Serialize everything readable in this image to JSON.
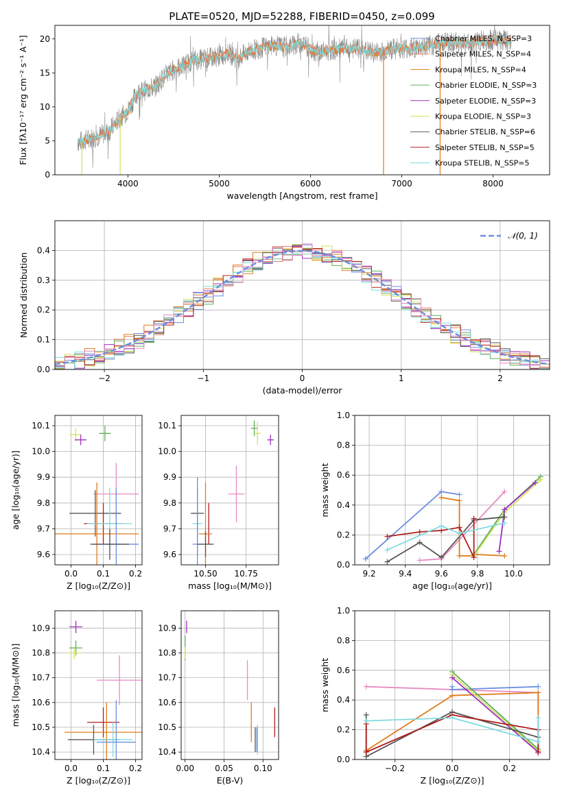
{
  "figure": {
    "title": "PLATE=0520, MJD=52288, FIBERID=0450, z=0.099"
  },
  "colors": {
    "Chabrier MILES": "#6a8ee0",
    "Salpeter MILES": "#e07a5f",
    "Kroupa MILES": "#e07b1c",
    "Chabrier ELODIE": "#5cae5c",
    "Salpeter ELODIE": "#9b30c0",
    "Kroupa ELODIE": "#d4e05a",
    "Chabrier STELIB": "#555555",
    "Salpeter STELIB": "#b01c1c",
    "Kroupa STELIB": "#7fdbe0",
    "pink": "#e88ac0",
    "gaussian": "#6a8ee0",
    "spectrum": "#888888"
  },
  "chart_data": [
    {
      "id": "spectrum",
      "type": "line",
      "xlabel": "wavelength [Angstrom, rest frame]",
      "ylabel": "Flux [fλ10⁻¹⁷ erg cm⁻² s⁻¹ A⁻¹]",
      "xlim": [
        3200,
        8620
      ],
      "ylim": [
        0,
        22
      ],
      "xticks": [
        4000,
        5000,
        6000,
        7000,
        8000
      ],
      "yticks": [
        0,
        5,
        10,
        15,
        20
      ],
      "grid": false,
      "legend_position": "upper-right",
      "legend": [
        {
          "label": "Chabrier MILES, N_SSP=3",
          "color": "Chabrier MILES"
        },
        {
          "label": "Salpeter MILES, N_SSP=4",
          "color": "Salpeter MILES"
        },
        {
          "label": "Kroupa MILES, N_SSP=4",
          "color": "Kroupa MILES"
        },
        {
          "label": "Chabrier ELODIE, N_SSP=3",
          "color": "Chabrier ELODIE"
        },
        {
          "label": "Salpeter ELODIE, N_SSP=3",
          "color": "Salpeter ELODIE"
        },
        {
          "label": "Kroupa ELODIE, N_SSP=3",
          "color": "Kroupa ELODIE"
        },
        {
          "label": "Chabrier STELIB, N_SSP=6",
          "color": "Chabrier STELIB"
        },
        {
          "label": "Salpeter STELIB, N_SSP=5",
          "color": "Salpeter STELIB"
        },
        {
          "label": "Kroupa STELIB, N_SSP=5",
          "color": "Kroupa STELIB"
        }
      ],
      "continuum": [
        [
          3450,
          4.8
        ],
        [
          3550,
          5.2
        ],
        [
          3700,
          5.8
        ],
        [
          3800,
          6.5
        ],
        [
          3900,
          8.2
        ],
        [
          4000,
          9.5
        ],
        [
          4100,
          12.0
        ],
        [
          4200,
          12.5
        ],
        [
          4300,
          13.0
        ],
        [
          4400,
          14.5
        ],
        [
          4500,
          15.5
        ],
        [
          4600,
          16.0
        ],
        [
          4700,
          16.8
        ],
        [
          4800,
          17.0
        ],
        [
          4900,
          17.2
        ],
        [
          5000,
          17.5
        ],
        [
          5100,
          18.0
        ],
        [
          5200,
          17.0
        ],
        [
          5300,
          18.0
        ],
        [
          5400,
          18.5
        ],
        [
          5500,
          18.8
        ],
        [
          5600,
          19.0
        ],
        [
          5700,
          18.8
        ],
        [
          5800,
          19.0
        ],
        [
          5900,
          19.5
        ],
        [
          6000,
          18.5
        ],
        [
          6100,
          18.0
        ],
        [
          6200,
          18.3
        ],
        [
          6300,
          18.5
        ],
        [
          6400,
          18.5
        ],
        [
          6500,
          18.6
        ],
        [
          6600,
          18.2
        ],
        [
          6700,
          18.0
        ],
        [
          6800,
          18.2
        ],
        [
          6900,
          18.5
        ],
        [
          7000,
          18.7
        ],
        [
          7100,
          18.6
        ],
        [
          7200,
          18.8
        ],
        [
          7300,
          19.0
        ],
        [
          7400,
          19.3
        ],
        [
          7500,
          19.6
        ],
        [
          7600,
          19.5
        ],
        [
          7700,
          19.3
        ],
        [
          7800,
          19.5
        ],
        [
          7900,
          19.8
        ],
        [
          8000,
          19.8
        ],
        [
          8100,
          19.8
        ],
        [
          8200,
          19.6
        ]
      ],
      "spikes": [
        [
          3495,
          0
        ],
        [
          3915,
          0
        ],
        [
          6800,
          0
        ],
        [
          7420,
          0
        ]
      ]
    },
    {
      "id": "residuals",
      "type": "histogram",
      "xlabel": "(data-model)/error",
      "ylabel": "Normed distribution",
      "xlim": [
        -2.5,
        2.5
      ],
      "ylim": [
        0,
        0.5
      ],
      "xticks": [
        -2,
        -1,
        0,
        1,
        2
      ],
      "xtick_labels": [
        "−2",
        "−1",
        "0",
        "1",
        "2"
      ],
      "yticks": [
        0.0,
        0.1,
        0.2,
        0.3,
        0.4
      ],
      "ytick_labels": [
        "0.0",
        "0.1",
        "0.2",
        "0.3",
        "0.4"
      ],
      "grid": true,
      "legend": [
        {
          "label": "𝒩(0, 1)",
          "color": "gaussian",
          "style": "dashed"
        }
      ],
      "bin_width": 0.1
    },
    {
      "id": "age_vs_Z",
      "type": "errorbar",
      "xlabel": "Z [log₁₀(Z/Z⊙)]",
      "ylabel": "age  [log₁₀(age/yr)]",
      "xlim": [
        -0.05,
        0.22
      ],
      "ylim": [
        9.56,
        10.14
      ],
      "xticks": [
        0.0,
        0.1,
        0.2
      ],
      "xtick_labels": [
        "0.0",
        "0.1",
        "0.2"
      ],
      "yticks": [
        9.6,
        9.7,
        9.8,
        9.9,
        10.0,
        10.1
      ],
      "ytick_labels": [
        "9.6",
        "9.7",
        "9.8",
        "9.9",
        "10.0",
        "10.1"
      ],
      "grid": true,
      "points": [
        {
          "x": 0.105,
          "y": 10.07,
          "xerr": 0.018,
          "yerr": 0.03,
          "color": "Chabrier ELODIE"
        },
        {
          "x": 0.0145,
          "y": 10.065,
          "xerr": 0.018,
          "yerr": 0.025,
          "color": "Kroupa ELODIE"
        },
        {
          "x": 0.03,
          "y": 10.045,
          "xerr": 0.018,
          "yerr": 0.02,
          "color": "Salpeter ELODIE"
        },
        {
          "x": 0.14,
          "y": 9.835,
          "xerr": 0.07,
          "yerr": 0.12,
          "color": "pink"
        },
        {
          "x": 0.075,
          "y": 9.76,
          "xerr": 0.08,
          "yerr": 0.09,
          "color": "Chabrier STELIB"
        },
        {
          "x": 0.1,
          "y": 9.72,
          "xerr": 0.06,
          "yerr": 0.08,
          "color": "Salpeter STELIB"
        },
        {
          "x": 0.12,
          "y": 9.72,
          "xerr": 0.07,
          "yerr": 0.14,
          "color": "Kroupa STELIB"
        },
        {
          "x": 0.08,
          "y": 9.68,
          "xerr": 0.13,
          "yerr": 0.2,
          "color": "Kroupa MILES"
        },
        {
          "x": 0.14,
          "y": 9.64,
          "xerr": 0.07,
          "yerr": 0.22,
          "color": "Chabrier MILES"
        },
        {
          "x": 0.12,
          "y": 9.64,
          "xerr": 0.06,
          "yerr": 0.06,
          "color": "Chabrier STELIB"
        }
      ]
    },
    {
      "id": "age_vs_mass",
      "type": "errorbar",
      "xlabel": "mass [log₁₀(M/M⊙)]",
      "xlim": [
        10.35,
        10.95
      ],
      "ylim": [
        9.56,
        10.14
      ],
      "xticks": [
        10.5,
        10.75
      ],
      "xtick_labels": [
        "10.50",
        "10.75"
      ],
      "yticks": [
        9.6,
        9.7,
        9.8,
        9.9,
        10.0,
        10.1
      ],
      "ytick_labels": [
        "9.6",
        "9.7",
        "9.8",
        "9.9",
        "10.0",
        "10.1"
      ],
      "grid": true,
      "points": [
        {
          "x": 10.8,
          "y": 10.09,
          "xerr": 0.02,
          "yerr": 0.03,
          "color": "Chabrier ELODIE"
        },
        {
          "x": 10.82,
          "y": 10.07,
          "xerr": 0.02,
          "yerr": 0.045,
          "color": "Kroupa ELODIE"
        },
        {
          "x": 10.9,
          "y": 10.045,
          "xerr": 0.02,
          "yerr": 0.02,
          "color": "Salpeter ELODIE"
        },
        {
          "x": 10.69,
          "y": 9.835,
          "xerr": 0.05,
          "yerr": 0.11,
          "color": "pink"
        },
        {
          "x": 10.45,
          "y": 9.76,
          "xerr": 0.04,
          "yerr": 0.09,
          "color": "Chabrier STELIB"
        },
        {
          "x": 10.52,
          "y": 9.72,
          "xerr": 0.0,
          "yerr": 0.08,
          "color": "Salpeter STELIB"
        },
        {
          "x": 10.45,
          "y": 9.72,
          "xerr": 0.03,
          "yerr": 0.13,
          "color": "Kroupa STELIB"
        },
        {
          "x": 10.5,
          "y": 9.68,
          "xerr": 0.04,
          "yerr": 0.2,
          "color": "Kroupa MILES"
        },
        {
          "x": 10.45,
          "y": 9.64,
          "xerr": 0.03,
          "yerr": 0.26,
          "color": "Chabrier MILES"
        },
        {
          "x": 10.5,
          "y": 9.64,
          "xerr": 0.05,
          "yerr": 0.05,
          "color": "Chabrier STELIB"
        }
      ]
    },
    {
      "id": "mass_weight_vs_age",
      "type": "line",
      "xlabel": "age  [log₁₀(age/yr)]",
      "ylabel": "mass weight",
      "xlim": [
        9.12,
        10.2
      ],
      "ylim": [
        0,
        1
      ],
      "xticks": [
        9.2,
        9.4,
        9.6,
        9.8,
        10.0
      ],
      "xtick_labels": [
        "9.2",
        "9.4",
        "9.6",
        "9.8",
        "10.0"
      ],
      "yticks": [
        0.0,
        0.2,
        0.4,
        0.6,
        0.8,
        1.0
      ],
      "ytick_labels": [
        "0.0",
        "0.2",
        "0.4",
        "0.6",
        "0.8",
        "1.0"
      ],
      "grid": true,
      "series": [
        {
          "color": "Chabrier MILES",
          "x": [
            9.18,
            9.6,
            9.7
          ],
          "y": [
            0.04,
            0.49,
            0.47
          ]
        },
        {
          "color": "pink",
          "x": [
            9.48,
            9.6,
            9.95
          ],
          "y": [
            0.03,
            0.04,
            0.49
          ]
        },
        {
          "color": "Kroupa MILES",
          "x": [
            9.6,
            9.7,
            9.7,
            9.78,
            9.78,
            9.95
          ],
          "y": [
            0.45,
            0.43,
            0.06,
            0.06,
            0.07,
            0.06
          ]
        },
        {
          "color": "Chabrier ELODIE",
          "x": [
            9.78,
            9.95,
            10.15
          ],
          "y": [
            0.07,
            0.37,
            0.59
          ]
        },
        {
          "color": "Kroupa ELODIE",
          "x": [
            9.78,
            9.95,
            10.15
          ],
          "y": [
            0.06,
            0.35,
            0.57
          ]
        },
        {
          "color": "Salpeter ELODIE",
          "x": [
            9.92,
            9.95,
            10.12
          ],
          "y": [
            0.09,
            0.37,
            0.55
          ]
        },
        {
          "color": "Chabrier STELIB",
          "x": [
            9.3,
            9.48,
            9.6,
            9.78,
            9.95
          ],
          "y": [
            0.02,
            0.15,
            0.05,
            0.3,
            0.32
          ]
        },
        {
          "color": "Salpeter STELIB",
          "x": [
            9.3,
            9.48,
            9.6,
            9.7,
            9.78,
            9.78
          ],
          "y": [
            0.19,
            0.22,
            0.23,
            0.25,
            0.05,
            0.31
          ]
        },
        {
          "color": "Kroupa STELIB",
          "x": [
            9.3,
            9.6,
            9.7,
            9.95
          ],
          "y": [
            0.1,
            0.26,
            0.21,
            0.28
          ]
        }
      ]
    },
    {
      "id": "mass_vs_Z",
      "type": "errorbar",
      "xlabel": "Z [log₁₀(Z/Z⊙)]",
      "ylabel": "mass [log₁₀(M/M⊙)]",
      "xlim": [
        -0.05,
        0.22
      ],
      "ylim": [
        10.37,
        10.97
      ],
      "xticks": [
        0.0,
        0.1,
        0.2
      ],
      "xtick_labels": [
        "0.0",
        "0.1",
        "0.2"
      ],
      "yticks": [
        10.4,
        10.5,
        10.6,
        10.7,
        10.8,
        10.9
      ],
      "ytick_labels": [
        "10.4",
        "10.5",
        "10.6",
        "10.7",
        "10.8",
        "10.9"
      ],
      "grid": true,
      "points": [
        {
          "x": 0.015,
          "y": 10.905,
          "xerr": 0.02,
          "yerr": 0.025,
          "color": "Salpeter ELODIE"
        },
        {
          "x": 0.015,
          "y": 10.82,
          "xerr": 0.02,
          "yerr": 0.03,
          "color": "Chabrier ELODIE"
        },
        {
          "x": 0.01,
          "y": 10.8,
          "xerr": 0.02,
          "yerr": 0.025,
          "color": "Kroupa ELODIE"
        },
        {
          "x": 0.15,
          "y": 10.69,
          "xerr": 0.07,
          "yerr": 0.1,
          "color": "pink"
        },
        {
          "x": 0.1,
          "y": 10.52,
          "xerr": 0.05,
          "yerr": 0.06,
          "color": "Salpeter STELIB"
        },
        {
          "x": 0.11,
          "y": 10.48,
          "xerr": 0.13,
          "yerr": 0.12,
          "color": "Kroupa MILES"
        },
        {
          "x": 0.07,
          "y": 10.45,
          "xerr": 0.08,
          "yerr": 0.06,
          "color": "Chabrier STELIB"
        },
        {
          "x": 0.13,
          "y": 10.45,
          "xerr": 0.06,
          "yerr": 0.07,
          "color": "Kroupa STELIB"
        },
        {
          "x": 0.14,
          "y": 10.44,
          "xerr": 0.06,
          "yerr": 0.17,
          "color": "Chabrier MILES"
        }
      ]
    },
    {
      "id": "mass_vs_ebv",
      "type": "errorbar",
      "xlabel": "E(B-V)",
      "xlim": [
        -0.005,
        0.12
      ],
      "ylim": [
        10.37,
        10.97
      ],
      "xticks": [
        0.0,
        0.05,
        0.1
      ],
      "xtick_labels": [
        "0.00",
        "0.05",
        "0.10"
      ],
      "yticks": [
        10.4,
        10.5,
        10.6,
        10.7,
        10.8,
        10.9
      ],
      "ytick_labels": [
        "10.4",
        "10.5",
        "10.6",
        "10.7",
        "10.8",
        "10.9"
      ],
      "grid": true,
      "points": [
        {
          "x": 0.002,
          "y": 10.905,
          "xerr": 0,
          "yerr": 0.025,
          "color": "Salpeter ELODIE"
        },
        {
          "x": 0.0,
          "y": 10.82,
          "xerr": 0,
          "yerr": 0.05,
          "color": "Chabrier ELODIE"
        },
        {
          "x": 0.0,
          "y": 10.8,
          "xerr": 0,
          "yerr": 0.025,
          "color": "Kroupa ELODIE"
        },
        {
          "x": 0.08,
          "y": 10.69,
          "xerr": 0,
          "yerr": 0.08,
          "color": "pink"
        },
        {
          "x": 0.085,
          "y": 10.52,
          "xerr": 0,
          "yerr": 0.08,
          "color": "Kroupa MILES"
        },
        {
          "x": 0.115,
          "y": 10.52,
          "xerr": 0,
          "yerr": 0.06,
          "color": "Salpeter STELIB"
        },
        {
          "x": 0.09,
          "y": 10.45,
          "xerr": 0,
          "yerr": 0.05,
          "color": "Chabrier STELIB"
        },
        {
          "x": 0.093,
          "y": 10.45,
          "xerr": 0,
          "yerr": 0.06,
          "color": "Kroupa STELIB"
        },
        {
          "x": 0.092,
          "y": 10.45,
          "xerr": 0,
          "yerr": 0.05,
          "color": "Chabrier MILES"
        }
      ]
    },
    {
      "id": "mass_weight_vs_Z",
      "type": "line",
      "xlabel": "Z [log₁₀(Z/Z⊙)]",
      "ylabel": "mass weight",
      "xlim": [
        -0.34,
        0.34
      ],
      "ylim": [
        0,
        1
      ],
      "xticks": [
        -0.2,
        0.0,
        0.2
      ],
      "xtick_labels": [
        "−0.2",
        "0.0",
        "0.2"
      ],
      "yticks": [
        0.0,
        0.2,
        0.4,
        0.6,
        0.8,
        1.0
      ],
      "ytick_labels": [
        "0.0",
        "0.2",
        "0.4",
        "0.6",
        "0.8",
        "1.0"
      ],
      "grid": true,
      "series": [
        {
          "color": "pink",
          "x": [
            -0.3,
            0.0,
            0.3,
            0.3
          ],
          "y": [
            0.49,
            0.47,
            0.45,
            0.04
          ]
        },
        {
          "color": "Chabrier MILES",
          "x": [
            0.0,
            0.0,
            0.3
          ],
          "y": [
            0.49,
            0.47,
            0.49
          ]
        },
        {
          "color": "Kroupa MILES",
          "x": [
            -0.3,
            0.0,
            0.3,
            0.3
          ],
          "y": [
            0.06,
            0.43,
            0.45,
            0.06
          ]
        },
        {
          "color": "Chabrier ELODIE",
          "x": [
            0.0,
            0.3
          ],
          "y": [
            0.59,
            0.07
          ]
        },
        {
          "color": "Kroupa ELODIE",
          "x": [
            0.0,
            0.3
          ],
          "y": [
            0.57,
            0.06
          ]
        },
        {
          "color": "Salpeter ELODIE",
          "x": [
            0.0,
            0.3
          ],
          "y": [
            0.55,
            0.05
          ]
        },
        {
          "color": "Chabrier STELIB",
          "x": [
            -0.3,
            -0.3,
            0.0,
            0.3,
            0.3
          ],
          "y": [
            0.3,
            0.02,
            0.32,
            0.15,
            0.05
          ]
        },
        {
          "color": "Salpeter STELIB",
          "x": [
            -0.3,
            -0.3,
            0.0,
            0.3,
            0.3
          ],
          "y": [
            0.24,
            0.05,
            0.3,
            0.2,
            0.05
          ]
        },
        {
          "color": "Kroupa STELIB",
          "x": [
            -0.3,
            0.0,
            0.3,
            0.3
          ],
          "y": [
            0.26,
            0.28,
            0.12,
            0.28
          ]
        }
      ]
    }
  ]
}
